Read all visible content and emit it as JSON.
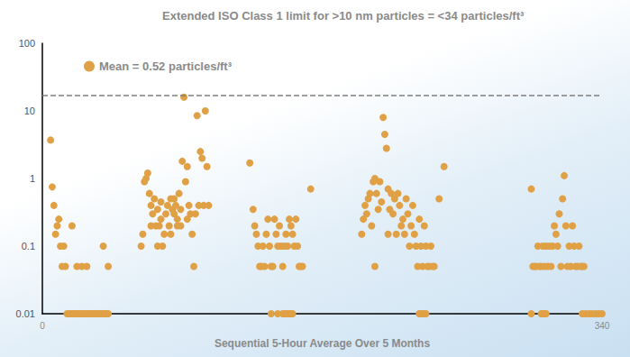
{
  "chart_data": {
    "type": "scatter",
    "title": "Extended ISO Class 1 limit for >10 nm particles = <34 particles/ft³",
    "x_label": "Sequential 5-Hour Average Over 5 Months",
    "series": [
      {
        "name": "Mean = 0.52 particles/ft³",
        "color": "#e0a045",
        "marker": "circle",
        "x": [
          5,
          6,
          7,
          8,
          9,
          10,
          11,
          12,
          13,
          14,
          18,
          21,
          24,
          27,
          37,
          40,
          15,
          16,
          17,
          18,
          19,
          20,
          21,
          22,
          23,
          24,
          25,
          26,
          27,
          28,
          29,
          30,
          31,
          32,
          33,
          34,
          35,
          36,
          37,
          38,
          39,
          40,
          60,
          61,
          62,
          63,
          64,
          65,
          66,
          67,
          68,
          69,
          70,
          71,
          72,
          73,
          74,
          75,
          76,
          77,
          78,
          79,
          80,
          81,
          82,
          83,
          84,
          85,
          86,
          87,
          88,
          89,
          90,
          91,
          92,
          93,
          94,
          95,
          96,
          97,
          98,
          99,
          100,
          101,
          66,
          70,
          78,
          82,
          88,
          72,
          80,
          84,
          126,
          128,
          129,
          130,
          131,
          132,
          133,
          134,
          135,
          136,
          137,
          138,
          139,
          140,
          141,
          142,
          143,
          144,
          145,
          146,
          147,
          148,
          149,
          150,
          151,
          152,
          153,
          154,
          155,
          156,
          157,
          158,
          163,
          139,
          143,
          146,
          147,
          148,
          149,
          150,
          151,
          152,
          194,
          195,
          196,
          197,
          198,
          199,
          200,
          201,
          202,
          203,
          204,
          205,
          206,
          207,
          208,
          209,
          210,
          211,
          212,
          213,
          214,
          215,
          216,
          217,
          218,
          219,
          220,
          221,
          222,
          223,
          224,
          225,
          226,
          227,
          228,
          229,
          230,
          231,
          232,
          233,
          234,
          235,
          236,
          237,
          238,
          241,
          244,
          202,
          210,
          229,
          230,
          231,
          232,
          233,
          297,
          298,
          299,
          300,
          301,
          302,
          303,
          304,
          305,
          306,
          307,
          308,
          309,
          310,
          311,
          312,
          313,
          314,
          315,
          316,
          317,
          318,
          319,
          320,
          321,
          322,
          323,
          324,
          325,
          326,
          327,
          328,
          329,
          297,
          303,
          304,
          305,
          306,
          328,
          330,
          332,
          334,
          336,
          338,
          340
        ],
        "values": [
          3.7,
          0.75,
          0.4,
          0.15,
          0.2,
          0.25,
          0.1,
          0.05,
          0.1,
          0.05,
          0.2,
          0.05,
          0.05,
          0.05,
          0.1,
          0.05,
          0.01,
          0.01,
          0.01,
          0.01,
          0.01,
          0.01,
          0.01,
          0.01,
          0.01,
          0.01,
          0.01,
          0.01,
          0.01,
          0.01,
          0.01,
          0.01,
          0.01,
          0.01,
          0.01,
          0.01,
          0.01,
          0.01,
          0.01,
          0.01,
          0.01,
          0.01,
          0.1,
          0.15,
          0.9,
          1.0,
          1.2,
          0.6,
          0.4,
          0.3,
          0.5,
          0.2,
          0.35,
          0.2,
          0.25,
          0.1,
          0.15,
          0.3,
          0.4,
          0.2,
          0.5,
          0.35,
          0.3,
          0.4,
          0.25,
          0.6,
          0.35,
          1.8,
          16,
          0.9,
          1.5,
          0.4,
          0.3,
          0.15,
          0.05,
          0.3,
          8.5,
          0.4,
          2.5,
          2.0,
          0.4,
          10,
          1.5,
          0.4,
          0.2,
          0.1,
          0.15,
          0.2,
          0.25,
          0.45,
          0.5,
          0.2,
          1.7,
          0.35,
          0.2,
          0.15,
          0.1,
          0.05,
          0.05,
          0.1,
          0.05,
          0.15,
          0.25,
          0.1,
          0.05,
          0.05,
          0.25,
          0.15,
          0.1,
          0.2,
          0.1,
          0.05,
          0.1,
          0.15,
          0.1,
          0.25,
          0.2,
          0.15,
          0.1,
          0.25,
          0.1,
          0.05,
          0.05,
          0.05,
          0.7,
          0.01,
          0.01,
          0.01,
          0.01,
          0.01,
          0.01,
          0.01,
          0.01,
          0.01,
          0.15,
          0.25,
          0.4,
          0.3,
          0.5,
          0.6,
          0.2,
          0.9,
          1.0,
          0.6,
          0.35,
          0.9,
          0.45,
          8,
          4.5,
          2.8,
          0.7,
          0.35,
          0.6,
          0.3,
          0.5,
          0.15,
          0.6,
          0.4,
          0.2,
          0.25,
          0.15,
          0.5,
          0.3,
          0.1,
          0.2,
          0.4,
          0.15,
          0.1,
          0.05,
          0.25,
          0.1,
          0.05,
          0.2,
          0.1,
          0.05,
          0.05,
          0.1,
          0.05,
          0.05,
          0.5,
          1.5,
          0.05,
          0.15,
          0.01,
          0.01,
          0.01,
          0.01,
          0.01,
          0.7,
          0.05,
          0.05,
          0.05,
          0.1,
          0.05,
          0.05,
          0.1,
          0.05,
          0.1,
          0.05,
          0.1,
          0.05,
          0.1,
          0.2,
          0.15,
          0.1,
          0.3,
          0.05,
          0.5,
          1.1,
          0.2,
          0.05,
          0.1,
          0.05,
          0.2,
          0.1,
          0.05,
          0.05,
          0.1,
          0.05,
          0.05,
          0.05,
          0.01,
          0.01,
          0.01,
          0.01,
          0.01,
          0.01,
          0.01,
          0.01,
          0.01,
          0.01,
          0.01,
          0.01
        ]
      }
    ],
    "reference_line": {
      "value": 17,
      "line_style": "dashed",
      "color": "#7f7f7f"
    },
    "xlim": [
      0,
      340
    ],
    "xticks": [
      0,
      340
    ],
    "ylim": [
      0.01,
      100
    ],
    "yticks": [
      0.01,
      0.1,
      1,
      10,
      100
    ],
    "log": "y",
    "grid": false,
    "legend": "upper left"
  }
}
